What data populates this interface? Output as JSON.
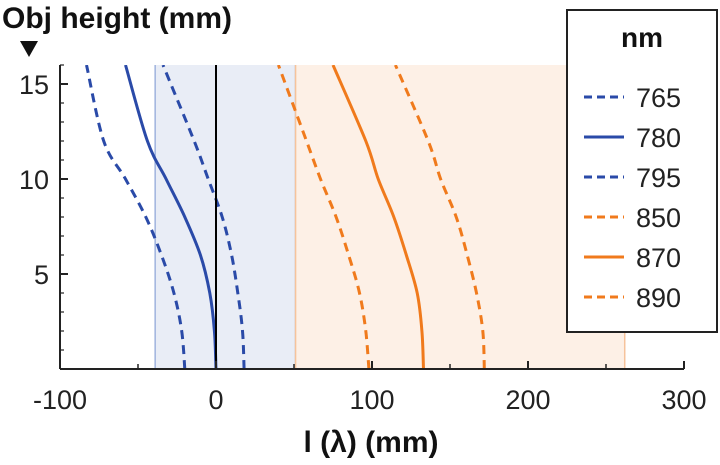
{
  "chart_data": {
    "type": "line",
    "ylabel": "Obj height (mm)",
    "xlabel": "l (λ) (mm)",
    "xlim": [
      -100,
      300
    ],
    "ylim": [
      0,
      16
    ],
    "xticks": [
      -100,
      0,
      100,
      200,
      300
    ],
    "yticks": [
      5,
      10,
      15
    ],
    "xtick_labels": [
      "-100",
      "0",
      "100",
      "200",
      "300"
    ],
    "ytick_labels": [
      "5",
      "10",
      "15"
    ],
    "grid": false,
    "legend": {
      "title": "nm",
      "position": "right"
    },
    "bands": [
      {
        "x_range": [
          -39,
          51
        ],
        "color": "#e9edf6",
        "edge_color": "#9fb3dd"
      },
      {
        "x_range": [
          51,
          262
        ],
        "color": "#fdf0e6",
        "edge_color": "#f6c39b"
      }
    ],
    "vertical_line": {
      "x": 0,
      "color": "#000000"
    },
    "colors": {
      "blue": "#2a4aa8",
      "orange": "#f07a1c"
    },
    "series": [
      {
        "name": "765",
        "color": "#2a4aa8",
        "style": "dashed",
        "x": [
          -20,
          -22,
          -27,
          -35,
          -45,
          -58,
          -72,
          -83
        ],
        "y": [
          0,
          2,
          4,
          6,
          8,
          10,
          12,
          16
        ]
      },
      {
        "name": "780",
        "color": "#2a4aa8",
        "style": "solid",
        "x": [
          0,
          -1,
          -4,
          -10,
          -20,
          -32,
          -44,
          -58
        ],
        "y": [
          0,
          2,
          4,
          6,
          8,
          10,
          12,
          16
        ]
      },
      {
        "name": "795",
        "color": "#2a4aa8",
        "style": "dashed",
        "x": [
          18,
          17,
          14,
          10,
          4,
          -5,
          -14,
          -34
        ],
        "y": [
          0,
          2,
          4,
          6,
          8,
          10,
          12,
          16
        ]
      },
      {
        "name": "850",
        "color": "#f07a1c",
        "style": "dashed",
        "x": [
          98,
          96,
          92,
          85,
          77,
          67,
          58,
          40
        ],
        "y": [
          0,
          2,
          4,
          6,
          8,
          10,
          12,
          16
        ]
      },
      {
        "name": "870",
        "color": "#f07a1c",
        "style": "solid",
        "x": [
          133,
          132,
          129,
          122,
          114,
          104,
          96,
          75
        ],
        "y": [
          0,
          2,
          4,
          6,
          8,
          10,
          12,
          16
        ]
      },
      {
        "name": "890",
        "color": "#f07a1c",
        "style": "dashed",
        "x": [
          172,
          171,
          167,
          161,
          154,
          144,
          136,
          115
        ],
        "y": [
          0,
          2,
          4,
          6,
          8,
          10,
          12,
          16
        ]
      }
    ]
  }
}
